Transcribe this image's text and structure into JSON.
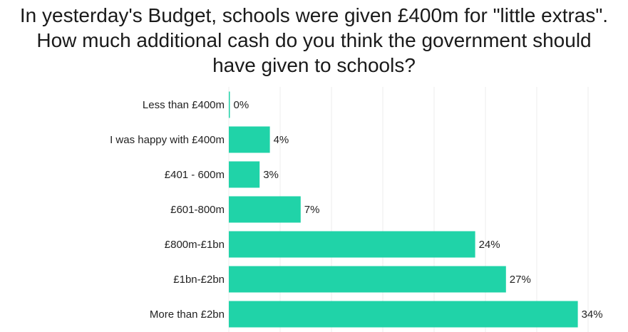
{
  "chart_data": {
    "type": "bar",
    "orientation": "horizontal",
    "title_lines": [
      "In yesterday's Budget, schools were given £400m for \"little extras\".",
      "How much additional cash do you think the government should",
      "have given to schools?"
    ],
    "categories": [
      "Less than £400m",
      "I was happy with £400m",
      "£401 - 600m",
      "£601-800m",
      "£800m-£1bn",
      "£1bn-£2bn",
      "More than £2bn"
    ],
    "values": [
      0,
      4,
      3,
      7,
      24,
      27,
      34
    ],
    "value_labels": [
      "0%",
      "4%",
      "3%",
      "7%",
      "24%",
      "27%",
      "34%"
    ],
    "xlabel": "",
    "ylabel": "",
    "xlim": [
      0,
      35
    ],
    "grid": true,
    "bar_color": "#20d3a8"
  }
}
